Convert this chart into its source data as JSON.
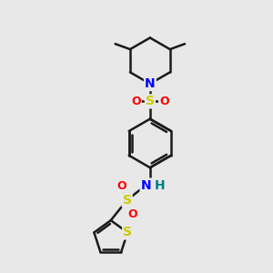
{
  "bg_color": "#e8e8e8",
  "bond_color": "#1a1a1a",
  "N_color": "#0000ff",
  "S_color": "#cccc00",
  "O_color": "#ff0000",
  "H_color": "#008080",
  "line_width": 1.8,
  "figsize": [
    3.0,
    3.0
  ],
  "dpi": 100,
  "xlim": [
    0,
    10
  ],
  "ylim": [
    0,
    10
  ]
}
